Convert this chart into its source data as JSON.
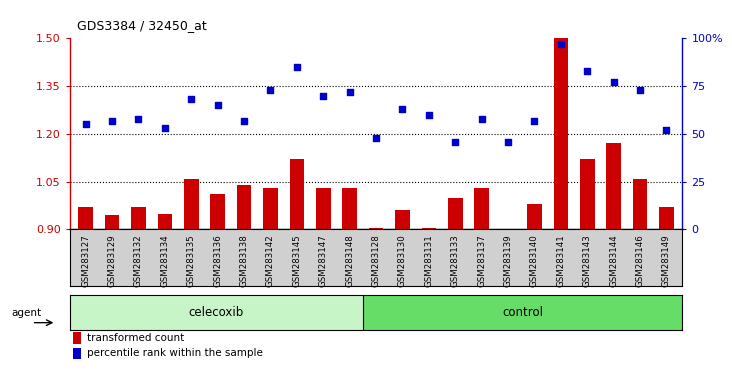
{
  "title": "GDS3384 / 32450_at",
  "samples": [
    "GSM283127",
    "GSM283129",
    "GSM283132",
    "GSM283134",
    "GSM283135",
    "GSM283136",
    "GSM283138",
    "GSM283142",
    "GSM283145",
    "GSM283147",
    "GSM283148",
    "GSM283128",
    "GSM283130",
    "GSM283131",
    "GSM283133",
    "GSM283137",
    "GSM283139",
    "GSM283140",
    "GSM283141",
    "GSM283143",
    "GSM283144",
    "GSM283146",
    "GSM283149"
  ],
  "bar_values": [
    0.97,
    0.945,
    0.97,
    0.95,
    1.06,
    1.01,
    1.04,
    1.03,
    1.12,
    1.03,
    1.03,
    0.905,
    0.96,
    0.905,
    1.0,
    1.03,
    0.9,
    0.98,
    1.5,
    1.12,
    1.17,
    1.06,
    0.97
  ],
  "dot_values": [
    55,
    57,
    58,
    53,
    68,
    65,
    57,
    73,
    85,
    70,
    72,
    48,
    63,
    60,
    46,
    58,
    46,
    57,
    97,
    83,
    77,
    73,
    52
  ],
  "bar_color": "#cc0000",
  "dot_color": "#0000cc",
  "ylim_left": [
    0.9,
    1.5
  ],
  "ylim_right": [
    0,
    100
  ],
  "yticks_left": [
    0.9,
    1.05,
    1.2,
    1.35,
    1.5
  ],
  "yticks_right": [
    0,
    25,
    50,
    75,
    100
  ],
  "ytick_labels_right": [
    "0",
    "25",
    "50",
    "75",
    "100%"
  ],
  "hlines": [
    1.05,
    1.2,
    1.35
  ],
  "celecoxib_count": 11,
  "control_count": 12,
  "agent_label": "agent",
  "celecoxib_label": "celecoxib",
  "control_label": "control",
  "legend_bar_label": "transformed count",
  "legend_dot_label": "percentile rank within the sample",
  "background_color": "#ffffff",
  "plot_bg_color": "#ffffff",
  "label_area_bg": "#d0d0d0",
  "celecoxib_bg": "#c8f5c8",
  "control_bg": "#66dd66"
}
